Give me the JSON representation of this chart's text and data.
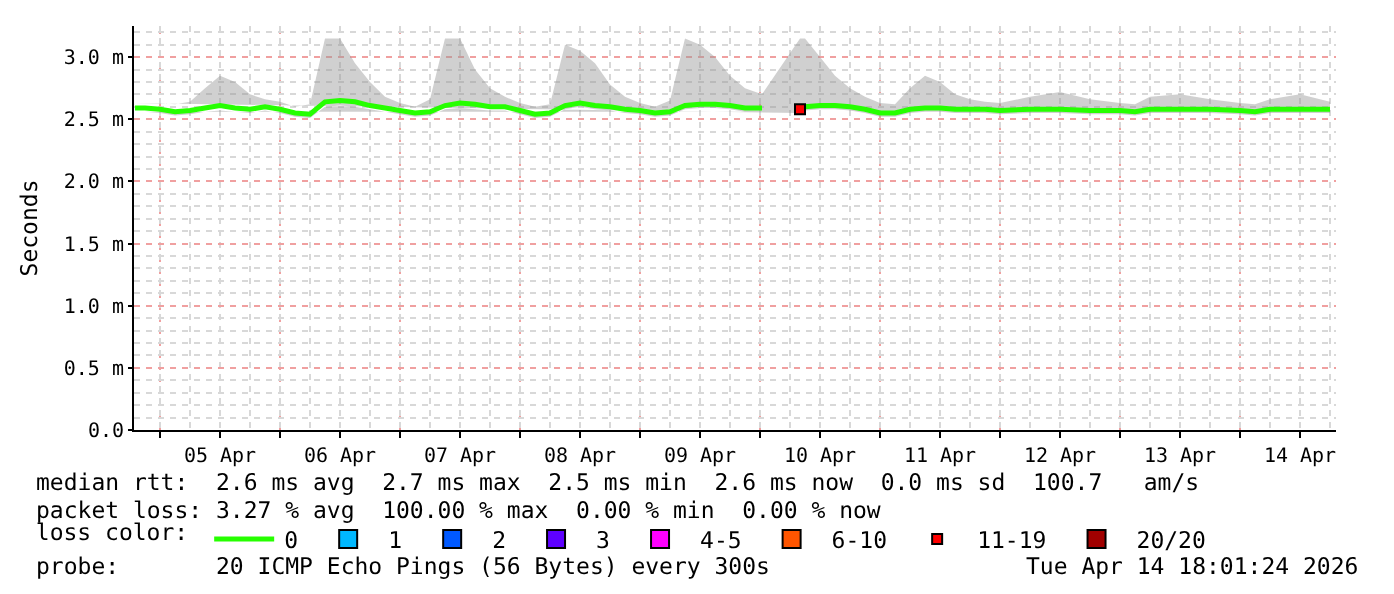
{
  "chart_data": {
    "type": "line",
    "ylabel": "Seconds",
    "legend_title": "loss color:",
    "xlim": [
      "2026-04-04T18:48",
      "2026-04-14T19:12"
    ],
    "xticks": [
      {
        "value": "2026-04-05T00:00",
        "label": null
      },
      {
        "value": "2026-04-05T12:00",
        "label": "05 Apr"
      },
      {
        "value": "2026-04-06T00:00",
        "label": null
      },
      {
        "value": "2026-04-06T12:00",
        "label": "06 Apr"
      },
      {
        "value": "2026-04-07T00:00",
        "label": null
      },
      {
        "value": "2026-04-07T12:00",
        "label": "07 Apr"
      },
      {
        "value": "2026-04-08T00:00",
        "label": null
      },
      {
        "value": "2026-04-08T12:00",
        "label": "08 Apr"
      },
      {
        "value": "2026-04-09T00:00",
        "label": null
      },
      {
        "value": "2026-04-09T12:00",
        "label": "09 Apr"
      },
      {
        "value": "2026-04-10T00:00",
        "label": null
      },
      {
        "value": "2026-04-10T12:00",
        "label": "10 Apr"
      },
      {
        "value": "2026-04-11T00:00",
        "label": null
      },
      {
        "value": "2026-04-11T12:00",
        "label": "11 Apr"
      },
      {
        "value": "2026-04-12T00:00",
        "label": null
      },
      {
        "value": "2026-04-12T12:00",
        "label": "12 Apr"
      },
      {
        "value": "2026-04-13T00:00",
        "label": null
      },
      {
        "value": "2026-04-13T12:00",
        "label": "13 Apr"
      },
      {
        "value": "2026-04-14T00:00",
        "label": null
      },
      {
        "value": "2026-04-14T12:00",
        "label": "14 Apr"
      }
    ],
    "ylim": [
      0,
      3.25
    ],
    "yticks": [
      {
        "value": 0,
        "label": "0.0"
      },
      {
        "value": 0.5,
        "label": "0.5 m"
      },
      {
        "value": 1,
        "label": "1.0 m"
      },
      {
        "value": 1.5,
        "label": "1.5 m"
      },
      {
        "value": 2,
        "label": "2.0 m"
      },
      {
        "value": 2.5,
        "label": "2.5 m"
      },
      {
        "value": 3,
        "label": "3.0 m"
      }
    ],
    "grid": true,
    "legend": "bottom",
    "line_style": "solid",
    "series": [
      {
        "name": "0",
        "color": "#26ff00",
        "x": [
          "2026-04-04T19:00",
          "2026-04-04T21:00",
          "2026-04-05T00:00",
          "2026-04-05T03:00",
          "2026-04-05T06:00",
          "2026-04-05T09:00",
          "2026-04-05T12:00",
          "2026-04-05T15:00",
          "2026-04-05T18:00",
          "2026-04-05T21:00",
          "2026-04-06T00:00",
          "2026-04-06T03:00",
          "2026-04-06T06:00",
          "2026-04-06T09:00",
          "2026-04-06T12:00",
          "2026-04-06T15:00",
          "2026-04-06T18:00",
          "2026-04-06T21:00",
          "2026-04-07T00:00",
          "2026-04-07T03:00",
          "2026-04-07T06:00",
          "2026-04-07T09:00",
          "2026-04-07T12:00",
          "2026-04-07T15:00",
          "2026-04-07T18:00",
          "2026-04-07T21:00",
          "2026-04-08T00:00",
          "2026-04-08T03:00",
          "2026-04-08T06:00",
          "2026-04-08T09:00",
          "2026-04-08T12:00",
          "2026-04-08T15:00",
          "2026-04-08T18:00",
          "2026-04-08T21:00",
          "2026-04-09T00:00",
          "2026-04-09T03:00",
          "2026-04-09T06:00",
          "2026-04-09T09:00",
          "2026-04-09T12:00",
          "2026-04-09T15:00",
          "2026-04-09T18:00",
          "2026-04-09T21:00",
          "2026-04-10T00:24",
          "2026-04-10T04:00",
          "2026-04-10T08:00",
          "2026-04-10T09:00",
          "2026-04-10T12:00",
          "2026-04-10T15:00",
          "2026-04-10T18:00",
          "2026-04-10T21:00",
          "2026-04-11T00:00",
          "2026-04-11T03:00",
          "2026-04-11T06:00",
          "2026-04-11T09:00",
          "2026-04-11T12:00",
          "2026-04-11T15:00",
          "2026-04-11T18:00",
          "2026-04-11T21:00",
          "2026-04-12T00:00",
          "2026-04-12T06:00",
          "2026-04-12T12:00",
          "2026-04-12T18:00",
          "2026-04-13T00:00",
          "2026-04-13T03:00",
          "2026-04-13T06:00",
          "2026-04-13T12:00",
          "2026-04-13T18:00",
          "2026-04-14T00:00",
          "2026-04-14T03:00",
          "2026-04-14T06:00",
          "2026-04-14T12:00",
          "2026-04-14T18:00"
        ],
        "values": [
          2.59,
          2.59,
          2.58,
          2.56,
          2.57,
          2.59,
          2.61,
          2.59,
          2.58,
          2.6,
          2.58,
          2.55,
          2.54,
          2.64,
          2.65,
          2.64,
          2.61,
          2.59,
          2.57,
          2.55,
          2.56,
          2.61,
          2.63,
          2.62,
          2.6,
          2.6,
          2.57,
          2.54,
          2.55,
          2.61,
          2.63,
          2.61,
          2.6,
          2.58,
          2.57,
          2.55,
          2.56,
          2.61,
          2.62,
          2.62,
          2.61,
          2.59,
          2.59,
          null,
          2.58,
          2.6,
          2.61,
          2.61,
          2.6,
          2.58,
          2.55,
          2.55,
          2.58,
          2.59,
          2.59,
          2.58,
          2.58,
          2.58,
          2.57,
          2.58,
          2.58,
          2.57,
          2.57,
          2.56,
          2.58,
          2.58,
          2.58,
          2.57,
          2.56,
          2.58,
          2.58,
          2.58
        ],
        "lower": [
          2.56,
          2.56,
          2.55,
          2.53,
          2.54,
          2.56,
          2.57,
          2.56,
          2.55,
          2.57,
          2.55,
          2.52,
          2.51,
          2.6,
          2.61,
          2.6,
          2.58,
          2.56,
          2.54,
          2.52,
          2.53,
          2.58,
          2.59,
          2.58,
          2.57,
          2.57,
          2.54,
          2.51,
          2.52,
          2.58,
          2.6,
          2.58,
          2.57,
          2.55,
          2.54,
          2.52,
          2.53,
          2.58,
          2.59,
          2.59,
          2.58,
          2.56,
          2.56,
          null,
          2.55,
          2.57,
          2.58,
          2.58,
          2.57,
          2.55,
          2.52,
          2.52,
          2.55,
          2.56,
          2.56,
          2.55,
          2.55,
          2.55,
          2.54,
          2.55,
          2.55,
          2.54,
          2.54,
          2.53,
          2.55,
          2.55,
          2.55,
          2.54,
          2.53,
          2.55,
          2.55,
          2.55
        ],
        "upper": [
          2.63,
          2.63,
          2.63,
          2.62,
          2.64,
          2.75,
          2.85,
          2.8,
          2.7,
          2.66,
          2.64,
          2.6,
          2.62,
          3.15,
          3.15,
          2.95,
          2.8,
          2.68,
          2.63,
          2.6,
          2.66,
          3.15,
          3.15,
          2.9,
          2.75,
          2.68,
          2.63,
          2.6,
          2.62,
          3.1,
          3.05,
          2.95,
          2.78,
          2.68,
          2.63,
          2.6,
          2.65,
          3.15,
          3.1,
          3.0,
          2.85,
          2.75,
          2.7,
          null,
          3.15,
          3.15,
          3.0,
          2.85,
          2.75,
          2.68,
          2.63,
          2.62,
          2.75,
          2.85,
          2.8,
          2.7,
          2.66,
          2.64,
          2.63,
          2.68,
          2.72,
          2.66,
          2.63,
          2.62,
          2.68,
          2.7,
          2.66,
          2.63,
          2.62,
          2.66,
          2.7,
          2.64
        ]
      },
      {
        "name": "1",
        "color": "#00b8ff"
      },
      {
        "name": "2",
        "color": "#0059ff"
      },
      {
        "name": "3",
        "color": "#5e00ff"
      },
      {
        "name": "4-5",
        "color": "#ff00ff"
      },
      {
        "name": "6-10",
        "color": "#ff5500"
      },
      {
        "name": "11-19",
        "color": "#ff0000",
        "type": "scatter",
        "x": [
          "2026-04-10T08:00"
        ],
        "values": [
          2.58
        ]
      },
      {
        "name": "20/20",
        "color": "#a10000"
      }
    ],
    "annotations": [
      "median rtt:  2.6 ms avg  2.7 ms max  2.5 ms min  2.6 ms now  0.0 ms sd  100.7   am/s",
      "packet loss: 3.27 % avg  100.00 % max  0.00 % min  0.00 % now",
      "probe:       20 ICMP Echo Pings (56 Bytes) every 300s",
      "Tue Apr 14 18:01:24 2026"
    ]
  }
}
